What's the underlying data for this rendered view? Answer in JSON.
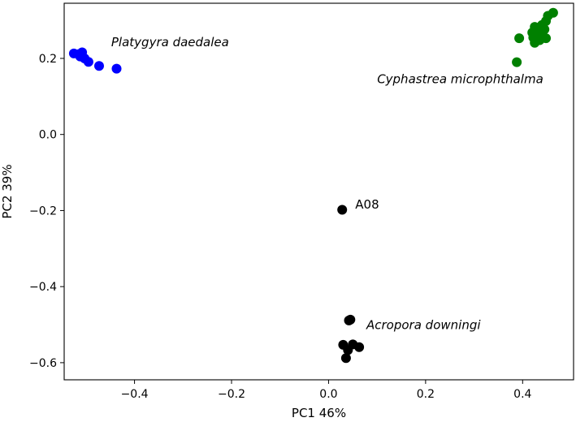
{
  "chart_data": {
    "type": "scatter",
    "title": "",
    "xlabel": "PC1 46%",
    "ylabel": "PC2 39%",
    "xlim": [
      -0.545,
      0.505
    ],
    "ylim": [
      -0.645,
      0.345
    ],
    "xticks": [
      {
        "value": -0.4,
        "label": "−0.4"
      },
      {
        "value": -0.2,
        "label": "−0.2"
      },
      {
        "value": 0.0,
        "label": "0.0"
      },
      {
        "value": 0.2,
        "label": "0.2"
      },
      {
        "value": 0.4,
        "label": "0.4"
      }
    ],
    "yticks": [
      {
        "value": 0.2,
        "label": "0.2"
      },
      {
        "value": 0.0,
        "label": "0.0"
      },
      {
        "value": -0.2,
        "label": "−0.2"
      },
      {
        "value": -0.4,
        "label": "−0.4"
      },
      {
        "value": -0.6,
        "label": "−0.6"
      }
    ],
    "grid": false,
    "legend": "none",
    "series": [
      {
        "color": "#0000ff",
        "points": [
          [
            -0.525,
            0.213
          ],
          [
            -0.515,
            0.211
          ],
          [
            -0.508,
            0.216
          ],
          [
            -0.512,
            0.205
          ],
          [
            -0.503,
            0.2
          ],
          [
            -0.495,
            0.191
          ],
          [
            -0.473,
            0.18
          ],
          [
            -0.437,
            0.173
          ]
        ]
      },
      {
        "color": "#008000",
        "points": [
          [
            0.463,
            0.32
          ],
          [
            0.452,
            0.312
          ],
          [
            0.448,
            0.298
          ],
          [
            0.44,
            0.288
          ],
          [
            0.425,
            0.283
          ],
          [
            0.445,
            0.276
          ],
          [
            0.432,
            0.272
          ],
          [
            0.42,
            0.268
          ],
          [
            0.44,
            0.265
          ],
          [
            0.428,
            0.261
          ],
          [
            0.422,
            0.255
          ],
          [
            0.448,
            0.253
          ],
          [
            0.393,
            0.253
          ],
          [
            0.435,
            0.248
          ],
          [
            0.425,
            0.241
          ],
          [
            0.388,
            0.19
          ]
        ]
      },
      {
        "color": "#000000",
        "points": [
          [
            0.028,
            -0.198
          ],
          [
            0.045,
            -0.487
          ],
          [
            0.042,
            -0.489
          ],
          [
            0.03,
            -0.553
          ],
          [
            0.05,
            -0.552
          ],
          [
            0.063,
            -0.559
          ],
          [
            0.04,
            -0.567
          ],
          [
            0.036,
            -0.588
          ]
        ]
      }
    ],
    "annotations": [
      {
        "text": "Platygyra daedalea",
        "x": -0.448,
        "y": 0.232,
        "italic": true
      },
      {
        "text": "Cyphastrea microphthalma",
        "x": 0.1,
        "y": 0.135,
        "italic": true
      },
      {
        "text": "A08",
        "x": 0.055,
        "y": -0.195,
        "italic": false
      },
      {
        "text": "Acropora downingi",
        "x": 0.078,
        "y": -0.512,
        "italic": true
      }
    ]
  }
}
